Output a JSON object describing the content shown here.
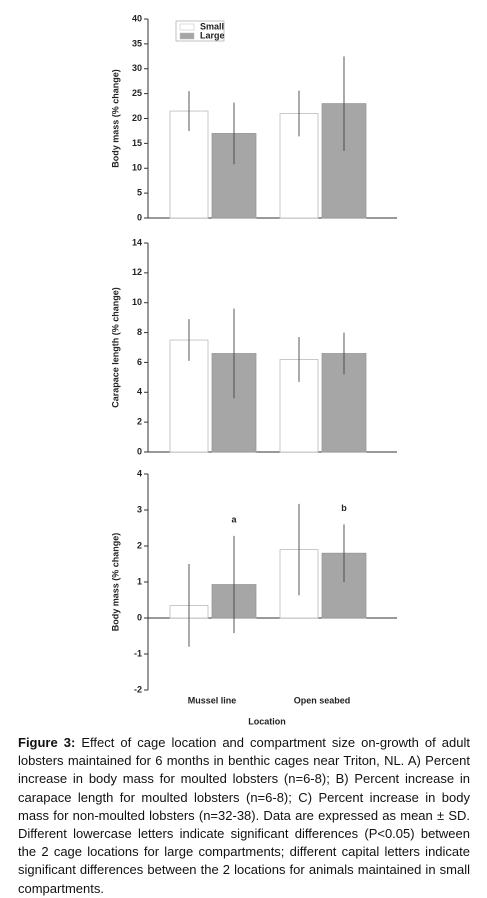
{
  "chart_data": [
    {
      "type": "bar",
      "ylabel": "Body mass (% change)",
      "ylim": [
        0,
        40
      ],
      "yticks": [
        0,
        5,
        10,
        15,
        20,
        25,
        30,
        35,
        40
      ],
      "legend": "upper left",
      "series": [
        {
          "name": "Small",
          "color": "#ffffff",
          "values": [
            21.5,
            21
          ],
          "errors": [
            4,
            4.6
          ]
        },
        {
          "name": "Large",
          "color": "#a6a6a6",
          "values": [
            17,
            23
          ],
          "errors": [
            6.2,
            9.5
          ]
        }
      ]
    },
    {
      "type": "bar",
      "ylabel": "Carapace length (% change)",
      "ylim": [
        0,
        14
      ],
      "yticks": [
        0,
        2,
        4,
        6,
        8,
        10,
        12,
        14
      ],
      "series": [
        {
          "color": "#ffffff",
          "values": [
            7.5,
            6.2
          ],
          "errors": [
            1.4,
            1.5
          ]
        },
        {
          "color": "#a6a6a6",
          "values": [
            6.6,
            6.6
          ],
          "errors": [
            3.0,
            1.4
          ]
        }
      ]
    },
    {
      "type": "bar",
      "ylabel": "Body mass (% change)",
      "xlabel": "Location",
      "categories": [
        "Mussel line",
        "Open seabed"
      ],
      "ylim": [
        -2,
        4
      ],
      "yticks": [
        -2,
        -1,
        0,
        1,
        2,
        3,
        4
      ],
      "series": [
        {
          "color": "#ffffff",
          "values": [
            0.35,
            1.9
          ],
          "errors": [
            1.15,
            1.27
          ]
        },
        {
          "color": "#a6a6a6",
          "values": [
            0.93,
            1.8
          ],
          "errors": [
            1.35,
            0.8
          ]
        }
      ],
      "annotations": [
        {
          "text": "a",
          "x": "Mussel line"
        },
        {
          "text": "b",
          "x": "Open seabed"
        }
      ]
    }
  ],
  "caption": {
    "label": "Figure 3:",
    "text": "Effect of cage location and compartment size on-growth of adult lobsters maintained for 6 months in benthic cages near Triton, NL. A) Percent increase in body mass for moulted lobsters (n=6-8); B) Percent increase in carapace length for moulted lobsters (n=6-8); C) Percent increase in body mass for non-moulted lobsters (n=32-38). Data are expressed as mean ± SD. Different lowercase letters indicate significant differences (P<0.05) between the 2 cage locations for large compartments; different capital letters indicate significant differences between the 2 locations for animals maintained in small compartments."
  }
}
